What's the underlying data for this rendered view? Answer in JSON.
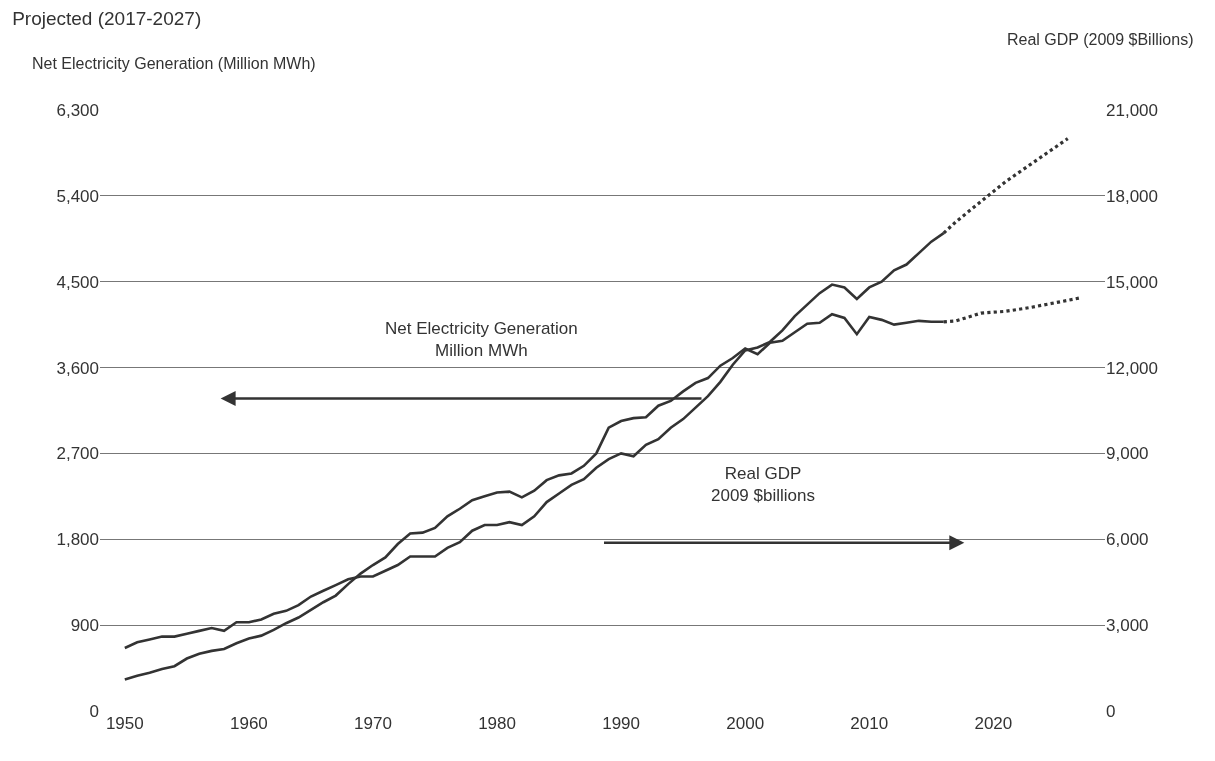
{
  "chart_data": {
    "type": "line",
    "title": "Projected (2017-2027)",
    "ylabel": "Net Electricity Generation (Million MWh)",
    "y2label": "Real GDP (2009 $Billions)",
    "annotations": [
      "Net Electricity Generation\nMillion MWh",
      "Real GDP\n2009 $billions"
    ],
    "xlim": [
      1948,
      2029
    ],
    "xticks": [
      1950,
      1960,
      1970,
      1980,
      1990,
      2000,
      2010,
      2020
    ],
    "ylim": [
      0,
      6300
    ],
    "yticks": [
      0,
      900,
      {
        "value": 1800,
        "label": "1,800"
      },
      {
        "value": 2700,
        "label": "2,700"
      },
      {
        "value": 3600,
        "label": "3,600"
      },
      {
        "value": 4500,
        "label": "4,500"
      },
      {
        "value": 5400,
        "label": "5,400"
      },
      {
        "value": 6300,
        "label": "6,300"
      }
    ],
    "y2lim": [
      0,
      21000
    ],
    "y2ticks": [
      0,
      {
        "value": 3000,
        "label": "3,000"
      },
      {
        "value": 6000,
        "label": "6,000"
      },
      {
        "value": 9000,
        "label": "9,000"
      },
      {
        "value": 12000,
        "label": "12,000"
      },
      {
        "value": 15000,
        "label": "15,000"
      },
      {
        "value": 18000,
        "label": "18,000"
      },
      {
        "value": 21000,
        "label": "21,000"
      }
    ],
    "grid": "y",
    "marker": "none",
    "series": [
      {
        "color": "#333333",
        "line_style": "solid",
        "x": [
          1950,
          1951,
          1952,
          1953,
          1954,
          1955,
          1956,
          1957,
          1958,
          1959,
          1960,
          1961,
          1962,
          1963,
          1964,
          1965,
          1966,
          1967,
          1968,
          1969,
          1970,
          1971,
          1972,
          1973,
          1974,
          1975,
          1976,
          1977,
          1978,
          1979,
          1980,
          1981,
          1982,
          1983,
          1984,
          1985,
          1986,
          1987,
          1988,
          1989,
          1990,
          1991,
          1992,
          1993,
          1994,
          1995,
          1996,
          1997,
          1998,
          1999,
          2000,
          2001,
          2002,
          2003,
          2004,
          2005,
          2006,
          2007,
          2008,
          2009,
          2010,
          2011,
          2012,
          2013,
          2014,
          2015,
          2016
        ],
        "values": [
          330,
          370,
          400,
          440,
          470,
          550,
          600,
          630,
          650,
          710,
          760,
          790,
          850,
          920,
          980,
          1060,
          1140,
          1210,
          1330,
          1440,
          1530,
          1610,
          1750,
          1860,
          1870,
          1920,
          2040,
          2120,
          2210,
          2250,
          2290,
          2300,
          2240,
          2310,
          2420,
          2470,
          2490,
          2570,
          2700,
          2970,
          3040,
          3070,
          3080,
          3200,
          3250,
          3350,
          3440,
          3490,
          3620,
          3700,
          3800,
          3740,
          3860,
          3880,
          3970,
          4060,
          4070,
          4160,
          4120,
          3950,
          4130,
          4100,
          4050,
          4070,
          4090,
          4080,
          4080
        ]
      },
      {
        "color": "#333333",
        "line_style": "dotted",
        "x": [
          2016,
          2017,
          2019,
          2021,
          2023,
          2025,
          2027
        ],
        "values": [
          4080,
          4090,
          4170,
          4190,
          4230,
          4280,
          4330
        ]
      },
      {
        "color": "#333333",
        "line_style": "solid",
        "axis": "y2",
        "x": [
          1950,
          1951,
          1952,
          1953,
          1954,
          1955,
          1956,
          1957,
          1958,
          1959,
          1960,
          1961,
          1962,
          1963,
          1964,
          1965,
          1966,
          1967,
          1968,
          1969,
          1970,
          1971,
          1972,
          1973,
          1974,
          1975,
          1976,
          1977,
          1978,
          1979,
          1980,
          1981,
          1982,
          1983,
          1984,
          1985,
          1986,
          1987,
          1988,
          1989,
          1990,
          1991,
          1992,
          1993,
          1994,
          1995,
          1996,
          1997,
          1998,
          1999,
          2000,
          2001,
          2002,
          2003,
          2004,
          2005,
          2006,
          2007,
          2008,
          2009,
          2010,
          2011,
          2012,
          2013,
          2014,
          2015,
          2016
        ],
        "values": [
          2200,
          2400,
          2500,
          2600,
          2600,
          2700,
          2800,
          2900,
          2800,
          3100,
          3100,
          3200,
          3400,
          3500,
          3700,
          4000,
          4200,
          4400,
          4600,
          4700,
          4700,
          4900,
          5100,
          5400,
          5400,
          5400,
          5700,
          5900,
          6300,
          6500,
          6500,
          6600,
          6500,
          6800,
          7300,
          7600,
          7900,
          8100,
          8500,
          8800,
          9000,
          8900,
          9300,
          9500,
          9900,
          10200,
          10600,
          11000,
          11500,
          12100,
          12600,
          12700,
          12900,
          13300,
          13800,
          14200,
          14600,
          14900,
          14800,
          14400,
          14800,
          15000,
          15400,
          15600,
          16000,
          16400,
          16700
        ]
      },
      {
        "color": "#333333",
        "line_style": "dotted",
        "axis": "y2",
        "x": [
          2016,
          2017,
          2019,
          2021,
          2023,
          2025,
          2026
        ],
        "values": [
          16700,
          17100,
          17800,
          18500,
          19100,
          19700,
          20000
        ]
      }
    ]
  }
}
